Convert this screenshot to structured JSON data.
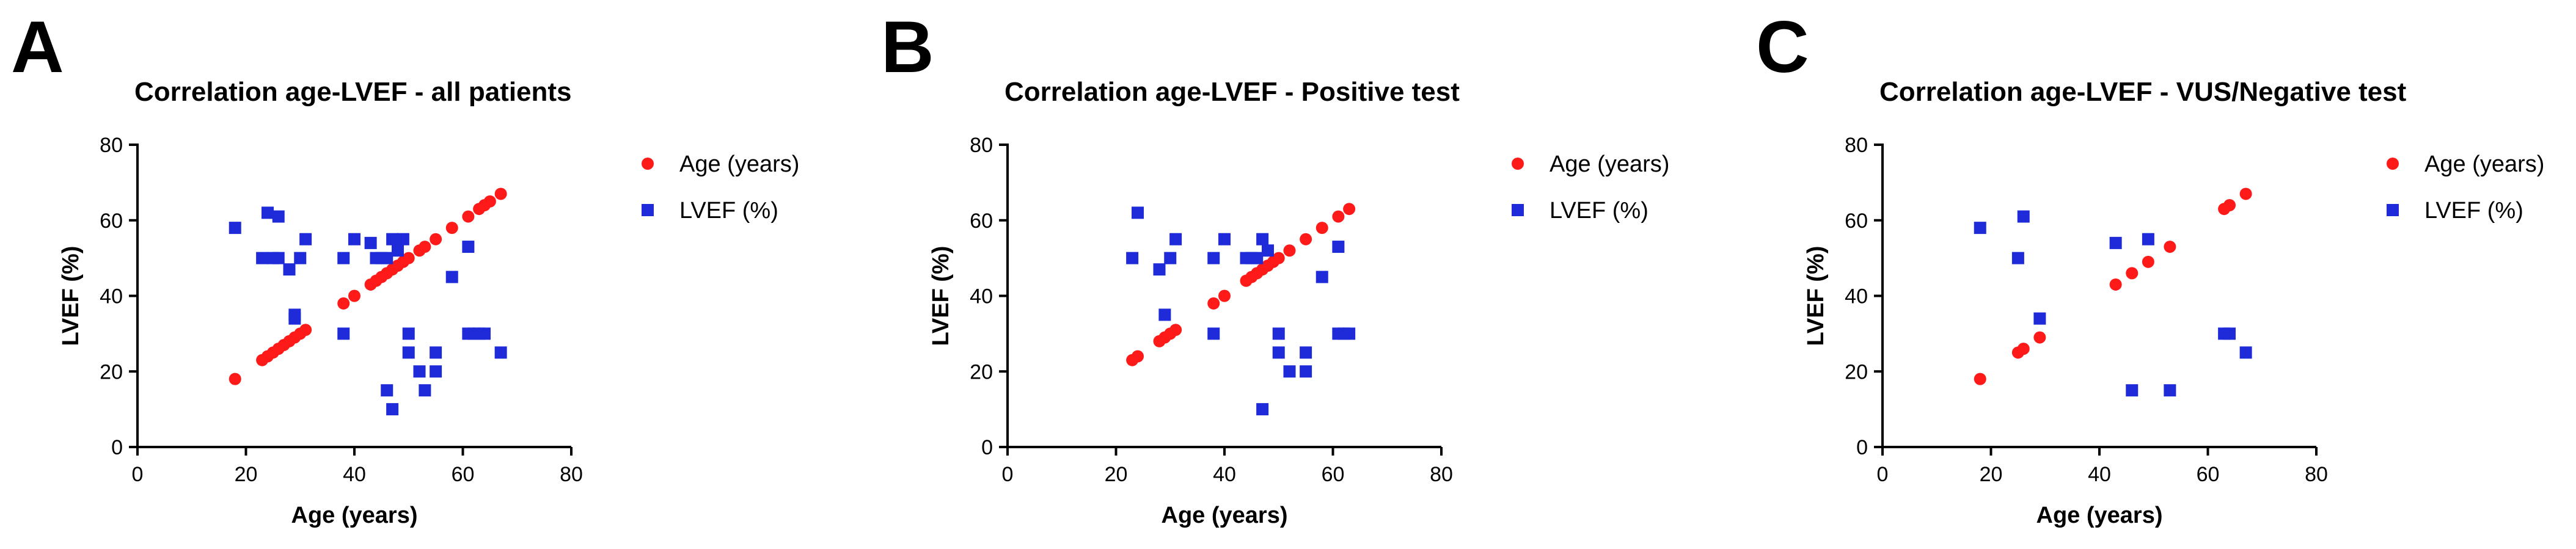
{
  "colors": {
    "age": "#ff1a1a",
    "lvef": "#1f2bd8"
  },
  "chart_data": [
    {
      "type": "scatter",
      "panel": "A",
      "title": "Correlation age-LVEF - all patients",
      "xlabel": "Age (years)",
      "ylabel": "LVEF (%)",
      "xlim": [
        0,
        80
      ],
      "ylim": [
        0,
        80
      ],
      "xticks": [
        0,
        20,
        40,
        60,
        80
      ],
      "yticks": [
        0,
        20,
        40,
        60,
        80
      ],
      "legend": "top-right",
      "series": [
        {
          "name": "Age (years)",
          "marker": "circle",
          "points": [
            [
              18,
              18
            ],
            [
              23,
              23
            ],
            [
              24,
              24
            ],
            [
              25,
              25
            ],
            [
              26,
              26
            ],
            [
              27,
              27
            ],
            [
              28,
              28
            ],
            [
              29,
              29
            ],
            [
              30,
              30
            ],
            [
              31,
              31
            ],
            [
              38,
              38
            ],
            [
              40,
              40
            ],
            [
              43,
              43
            ],
            [
              44,
              44
            ],
            [
              45,
              45
            ],
            [
              46,
              46
            ],
            [
              47,
              47
            ],
            [
              48,
              48
            ],
            [
              49,
              49
            ],
            [
              50,
              50
            ],
            [
              52,
              52
            ],
            [
              53,
              53
            ],
            [
              55,
              55
            ],
            [
              58,
              58
            ],
            [
              61,
              61
            ],
            [
              63,
              63
            ],
            [
              64,
              64
            ],
            [
              65,
              65
            ],
            [
              67,
              67
            ]
          ]
        },
        {
          "name": "LVEF (%)",
          "marker": "square",
          "points": [
            [
              18,
              58
            ],
            [
              23,
              50
            ],
            [
              24,
              62
            ],
            [
              25,
              50
            ],
            [
              26,
              61
            ],
            [
              26,
              50
            ],
            [
              28,
              47
            ],
            [
              29,
              35
            ],
            [
              29,
              34
            ],
            [
              30,
              50
            ],
            [
              31,
              55
            ],
            [
              38,
              50
            ],
            [
              38,
              30
            ],
            [
              40,
              55
            ],
            [
              43,
              54
            ],
            [
              44,
              50
            ],
            [
              45,
              50
            ],
            [
              46,
              50
            ],
            [
              46,
              15
            ],
            [
              47,
              10
            ],
            [
              47,
              55
            ],
            [
              48,
              52
            ],
            [
              49,
              55
            ],
            [
              50,
              30
            ],
            [
              50,
              25
            ],
            [
              52,
              20
            ],
            [
              53,
              15
            ],
            [
              55,
              25
            ],
            [
              55,
              20
            ],
            [
              58,
              45
            ],
            [
              61,
              53
            ],
            [
              61,
              30
            ],
            [
              62,
              30
            ],
            [
              63,
              30
            ],
            [
              64,
              30
            ],
            [
              67,
              25
            ]
          ]
        }
      ]
    },
    {
      "type": "scatter",
      "panel": "B",
      "title": "Correlation age-LVEF - Positive test",
      "xlabel": "Age (years)",
      "ylabel": "LVEF (%)",
      "xlim": [
        0,
        80
      ],
      "ylim": [
        0,
        80
      ],
      "xticks": [
        0,
        20,
        40,
        60,
        80
      ],
      "yticks": [
        0,
        20,
        40,
        60,
        80
      ],
      "legend": "top-right",
      "series": [
        {
          "name": "Age (years)",
          "marker": "circle",
          "points": [
            [
              23,
              23
            ],
            [
              24,
              24
            ],
            [
              28,
              28
            ],
            [
              29,
              29
            ],
            [
              30,
              30
            ],
            [
              31,
              31
            ],
            [
              38,
              38
            ],
            [
              40,
              40
            ],
            [
              44,
              44
            ],
            [
              45,
              45
            ],
            [
              46,
              46
            ],
            [
              47,
              47
            ],
            [
              48,
              48
            ],
            [
              49,
              49
            ],
            [
              50,
              50
            ],
            [
              52,
              52
            ],
            [
              55,
              55
            ],
            [
              58,
              58
            ],
            [
              61,
              61
            ],
            [
              63,
              63
            ]
          ]
        },
        {
          "name": "LVEF (%)",
          "marker": "square",
          "points": [
            [
              23,
              50
            ],
            [
              24,
              62
            ],
            [
              28,
              47
            ],
            [
              29,
              35
            ],
            [
              30,
              50
            ],
            [
              31,
              55
            ],
            [
              38,
              50
            ],
            [
              38,
              30
            ],
            [
              40,
              55
            ],
            [
              44,
              50
            ],
            [
              45,
              50
            ],
            [
              46,
              50
            ],
            [
              47,
              55
            ],
            [
              47,
              10
            ],
            [
              48,
              52
            ],
            [
              50,
              30
            ],
            [
              50,
              25
            ],
            [
              52,
              20
            ],
            [
              55,
              25
            ],
            [
              55,
              20
            ],
            [
              58,
              45
            ],
            [
              61,
              53
            ],
            [
              61,
              30
            ],
            [
              62,
              30
            ],
            [
              63,
              30
            ]
          ]
        }
      ]
    },
    {
      "type": "scatter",
      "panel": "C",
      "title": "Correlation age-LVEF - VUS/Negative test",
      "xlabel": "Age (years)",
      "ylabel": "LVEF (%)",
      "xlim": [
        0,
        80
      ],
      "ylim": [
        0,
        80
      ],
      "xticks": [
        0,
        20,
        40,
        60,
        80
      ],
      "yticks": [
        0,
        20,
        40,
        60,
        80
      ],
      "legend": "top-right",
      "series": [
        {
          "name": "Age (years)",
          "marker": "circle",
          "points": [
            [
              18,
              18
            ],
            [
              25,
              25
            ],
            [
              26,
              26
            ],
            [
              29,
              29
            ],
            [
              43,
              43
            ],
            [
              46,
              46
            ],
            [
              49,
              49
            ],
            [
              53,
              53
            ],
            [
              63,
              63
            ],
            [
              64,
              64
            ],
            [
              67,
              67
            ]
          ]
        },
        {
          "name": "LVEF (%)",
          "marker": "square",
          "points": [
            [
              18,
              58
            ],
            [
              25,
              50
            ],
            [
              26,
              61
            ],
            [
              29,
              34
            ],
            [
              43,
              54
            ],
            [
              46,
              15
            ],
            [
              49,
              55
            ],
            [
              53,
              15
            ],
            [
              63,
              30
            ],
            [
              64,
              30
            ],
            [
              67,
              25
            ]
          ]
        }
      ]
    }
  ]
}
